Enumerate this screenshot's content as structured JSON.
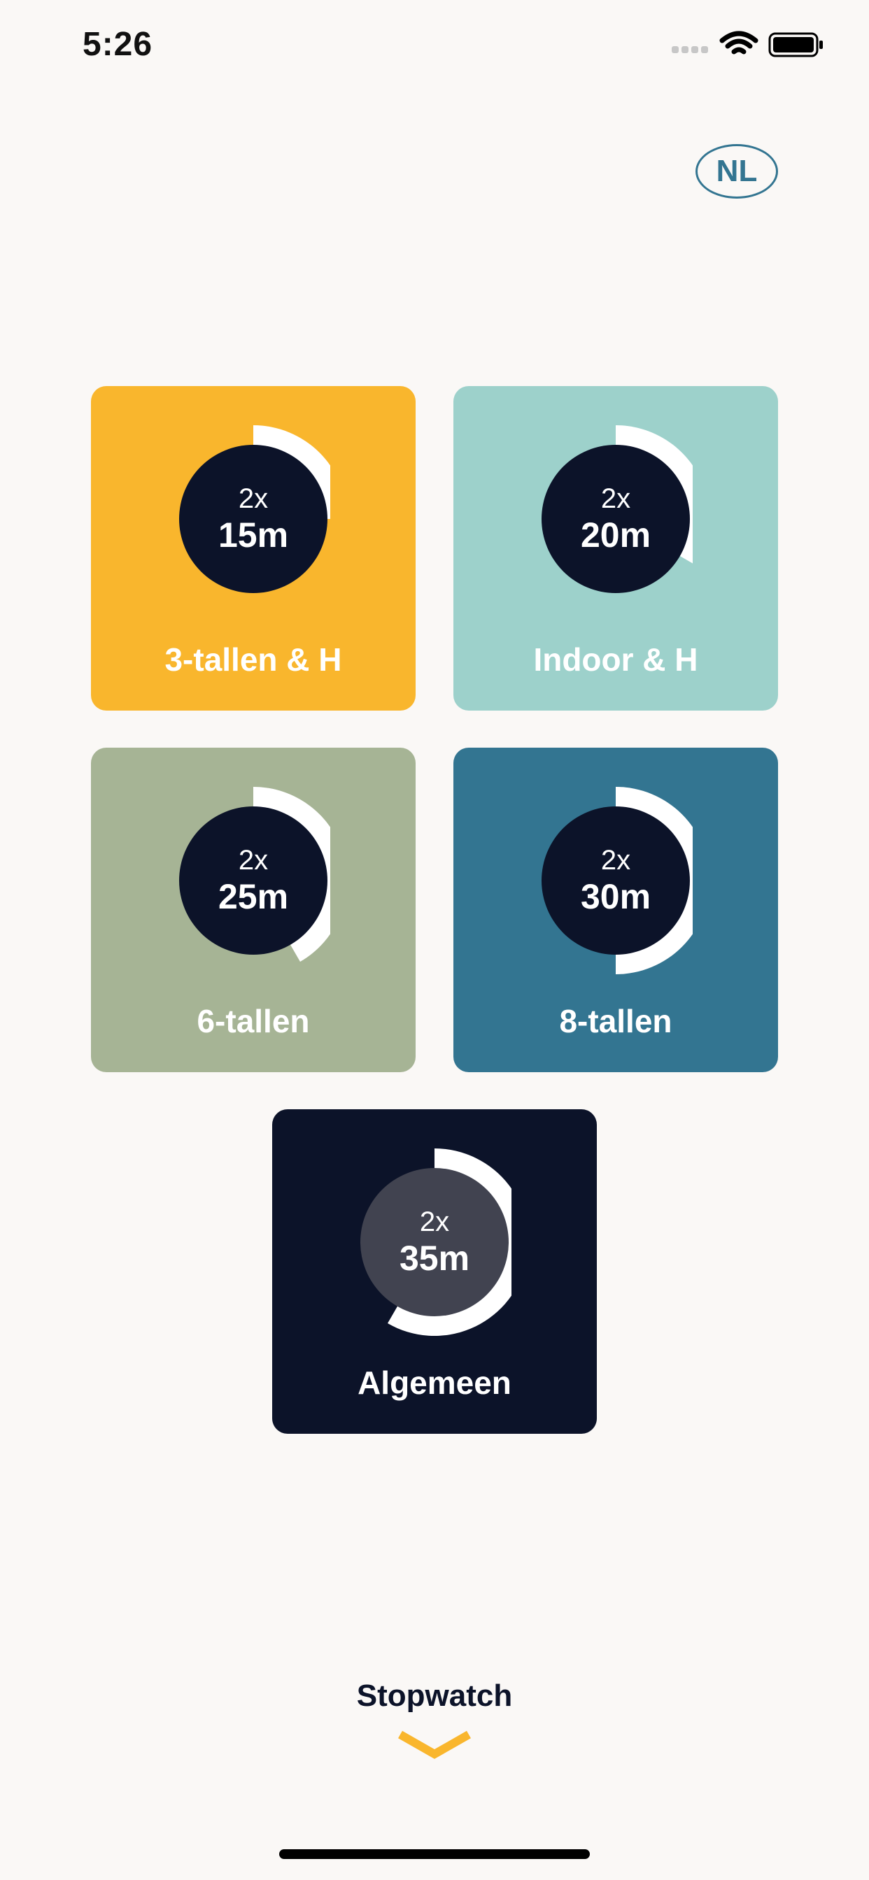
{
  "status_bar": {
    "time": "5:26"
  },
  "header": {
    "language_label": "NL"
  },
  "colors": {
    "background": "#faf8f6",
    "dial_ring": "#ffffff",
    "dial_disc": "#0c1329",
    "dial_disc_selected": "#414350",
    "accent": "#f9b62d",
    "language_outline": "#337591"
  },
  "timers": [
    {
      "id": "3-tallen",
      "count": "2x",
      "duration": "15m",
      "label": "3-tallen & H",
      "color": "#f9b62d",
      "ring_fraction": 0.25
    },
    {
      "id": "indoor",
      "count": "2x",
      "duration": "20m",
      "label": "Indoor & H",
      "color": "#9dd1cb",
      "ring_fraction": 0.3333
    },
    {
      "id": "6-tallen",
      "count": "2x",
      "duration": "25m",
      "label": "6-tallen",
      "color": "#a6b495",
      "ring_fraction": 0.4167
    },
    {
      "id": "8-tallen",
      "count": "2x",
      "duration": "30m",
      "label": "8-tallen",
      "color": "#337591",
      "ring_fraction": 0.5
    },
    {
      "id": "algemeen",
      "count": "2x",
      "duration": "35m",
      "label": "Algemeen",
      "color": "#0c1329",
      "ring_fraction": 0.5833,
      "selected": true
    }
  ],
  "stopwatch": {
    "label": "Stopwatch",
    "icon": "chevron-down-icon"
  }
}
